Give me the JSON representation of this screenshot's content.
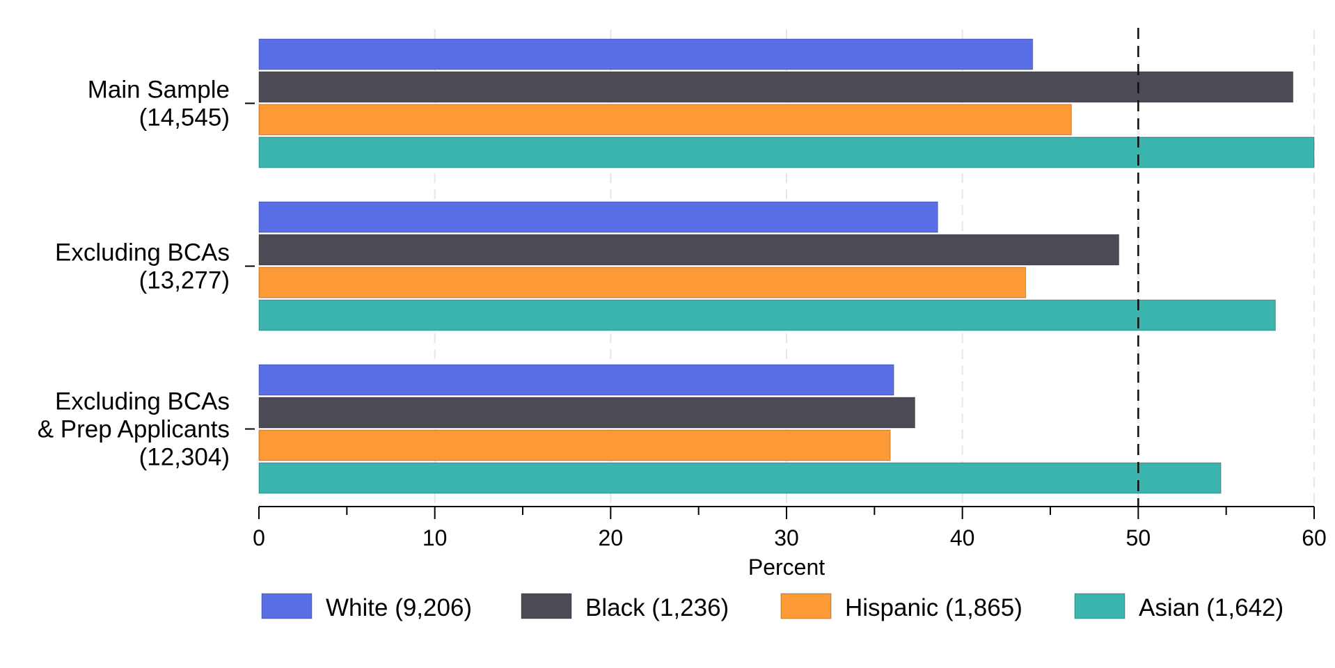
{
  "chart_data": {
    "type": "bar",
    "orientation": "horizontal",
    "categories": [
      [
        "Main Sample",
        "(14,545)"
      ],
      [
        "Excluding BCAs",
        "(13,277)"
      ],
      [
        "Excluding BCAs",
        "& Prep Applicants",
        "(12,304)"
      ]
    ],
    "series": [
      {
        "name": "White (9,206)",
        "color": "#5a6fe6",
        "values": [
          44.0,
          38.6,
          36.1
        ]
      },
      {
        "name": "Black (1,236)",
        "color": "#4b4a55",
        "values": [
          58.8,
          48.9,
          37.3
        ]
      },
      {
        "name": "Hispanic (1,865)",
        "color": "#fe9a35",
        "values": [
          46.2,
          43.6,
          35.9
        ]
      },
      {
        "name": "Asian (1,642)",
        "color": "#3bb4ae",
        "values": [
          60.0,
          57.8,
          54.7
        ]
      }
    ],
    "xlabel": "Percent",
    "xlim": [
      0,
      60
    ],
    "xticks": [
      "0",
      "10",
      "20",
      "30",
      "40",
      "50",
      "60"
    ],
    "minor_ticks_every": 5,
    "reference_line": {
      "value": 50,
      "style": "dashed"
    },
    "grid": "vertical-dashed",
    "legend_position": "bottom"
  }
}
